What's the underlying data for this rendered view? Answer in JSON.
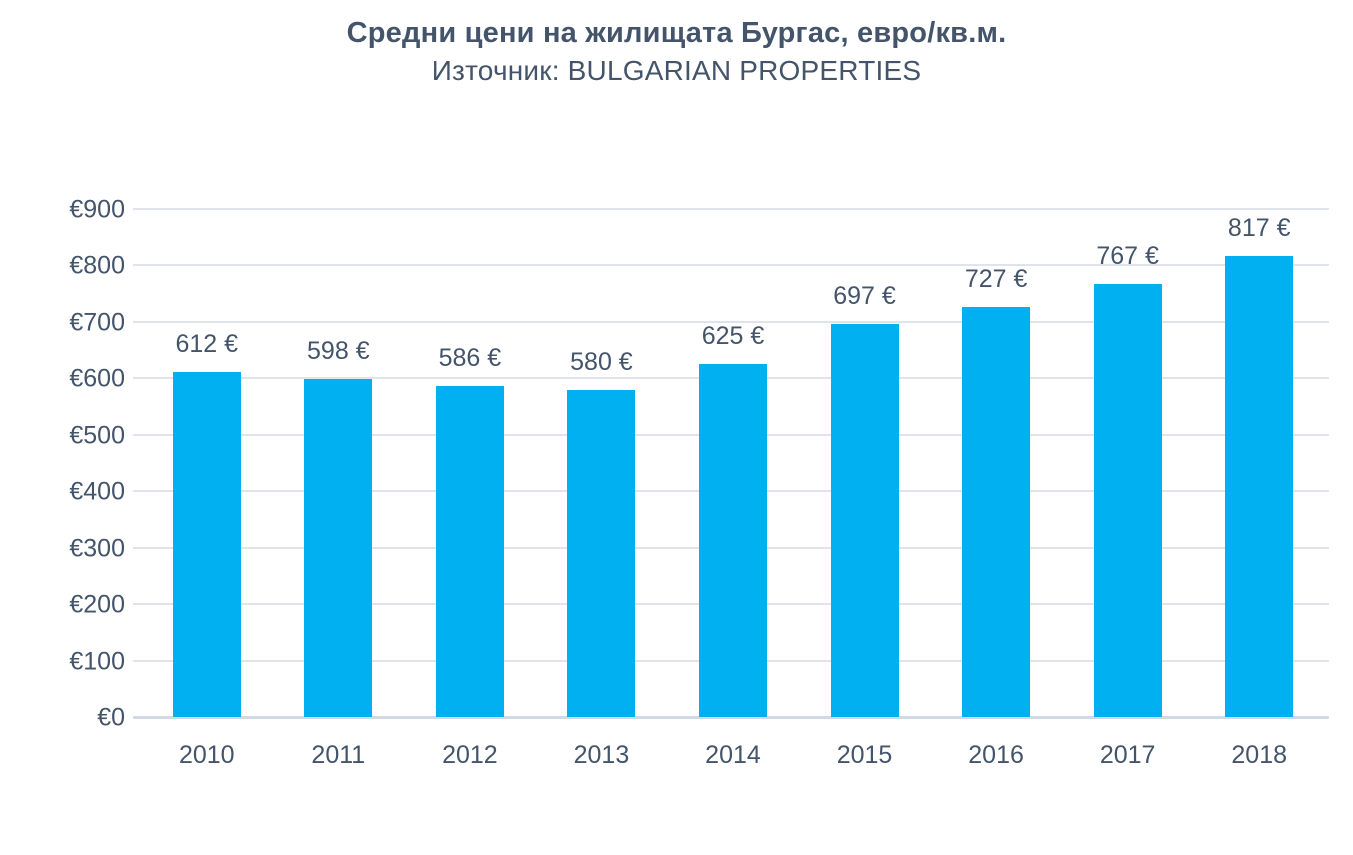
{
  "header": {
    "title": "Средни цени на жилищата Бургас, евро/кв.м.",
    "subtitle": "Източник: BULGARIAN PROPERTIES"
  },
  "colors": {
    "bar": "#00B0F0",
    "text": "#44546A",
    "gridline": "#DFE4EC",
    "axis_line": "#D2D9E2"
  },
  "chart_data": {
    "type": "bar",
    "title": "Средни цени на жилищата Бургас, евро/кв.м.",
    "subtitle": "Източник: BULGARIAN PROPERTIES",
    "categories": [
      "2010",
      "2011",
      "2012",
      "2013",
      "2014",
      "2015",
      "2016",
      "2017",
      "2018"
    ],
    "values": [
      612,
      598,
      586,
      580,
      625,
      697,
      727,
      767,
      817
    ],
    "value_labels": [
      "612 €",
      "598 €",
      "586 €",
      "580 €",
      "625 €",
      "697 €",
      "727 €",
      "767 €",
      "817 €"
    ],
    "yticks": [
      0,
      100,
      200,
      300,
      400,
      500,
      600,
      700,
      800,
      900
    ],
    "ytick_labels": [
      "€0",
      "€100",
      "€200",
      "€300",
      "€400",
      "€500",
      "€600",
      "€700",
      "€800",
      "€900"
    ],
    "ylim": [
      0,
      900
    ],
    "xlabel": "",
    "ylabel": "",
    "grid": "horizontal",
    "legend": "none",
    "bar_color": "#00B0F0"
  }
}
